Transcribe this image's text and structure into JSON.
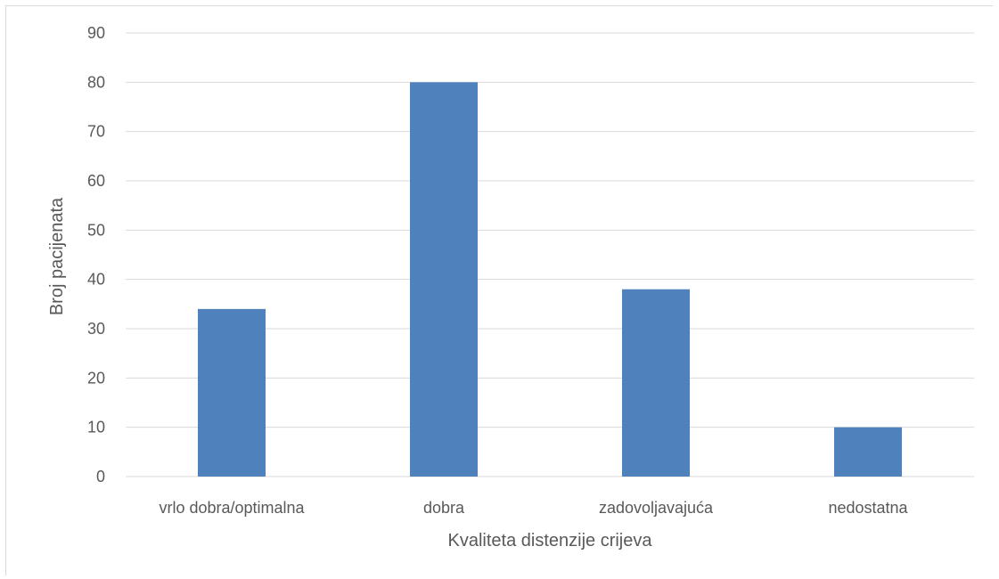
{
  "colors": {
    "bar": "#4f81bd",
    "grid": "#d9d9d9",
    "text": "#595959"
  },
  "chart_data": {
    "type": "bar",
    "title": "",
    "xlabel": "Kvaliteta distenzije crijeva",
    "ylabel": "Broj pacijenata",
    "categories": [
      "vrlo dobra/optimalna",
      "dobra",
      "zadovoljavajuća",
      "nedostatna"
    ],
    "values": [
      34,
      80,
      38,
      10
    ],
    "ylim": [
      0,
      90
    ],
    "yticks": [
      "0",
      "10",
      "20",
      "30",
      "40",
      "50",
      "60",
      "70",
      "80",
      "90"
    ],
    "grid": true,
    "legend": "none"
  }
}
